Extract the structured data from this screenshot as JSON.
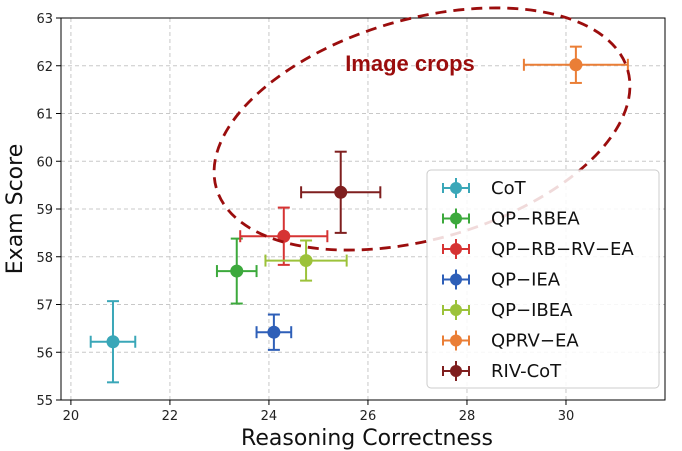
{
  "chart_data": {
    "type": "scatter",
    "title": "",
    "xlabel": "Reasoning Correctness",
    "ylabel": "Exam Score",
    "xlim": [
      19.8,
      32.0
    ],
    "ylim": [
      55,
      63
    ],
    "xticks": [
      "20",
      "22",
      "24",
      "26",
      "28",
      "30"
    ],
    "yticks": [
      "55",
      "56",
      "57",
      "58",
      "59",
      "60",
      "61",
      "62",
      "63"
    ],
    "grid": true,
    "legend_position": "bottom-right",
    "series": [
      {
        "name": "CoT",
        "x": 20.85,
        "y": 56.22,
        "xerr": 0.45,
        "yerr_low": 0.85,
        "yerr_high": 0.85,
        "color": "#3aa7b8"
      },
      {
        "name": "QP−RBEA",
        "x": 23.35,
        "y": 57.7,
        "xerr": 0.4,
        "yerr_low": 0.68,
        "yerr_high": 0.68,
        "color": "#3ca93c"
      },
      {
        "name": "QP−RB−RV−EA",
        "x": 24.3,
        "y": 58.43,
        "xerr": 0.88,
        "yerr_low": 0.6,
        "yerr_high": 0.6,
        "color": "#d63333"
      },
      {
        "name": "QP−IEA",
        "x": 24.1,
        "y": 56.42,
        "xerr": 0.35,
        "yerr_low": 0.37,
        "yerr_high": 0.37,
        "color": "#2e5fb8"
      },
      {
        "name": "QP−IBEA",
        "x": 24.75,
        "y": 57.92,
        "xerr": 0.82,
        "yerr_low": 0.42,
        "yerr_high": 0.42,
        "color": "#9cc23a"
      },
      {
        "name": "QPRV−EA",
        "x": 30.2,
        "y": 62.02,
        "xerr": 1.05,
        "yerr_low": 0.38,
        "yerr_high": 0.38,
        "color": "#ea7e36"
      },
      {
        "name": "RIV-CoT",
        "x": 25.45,
        "y": 59.35,
        "xerr": 0.8,
        "yerr_low": 0.85,
        "yerr_high": 0.85,
        "color": "#7f1f1f"
      }
    ],
    "annotations": [
      {
        "text": "Image crops",
        "color": "#9b0d0d",
        "shape": "dashed-ellipse"
      }
    ]
  }
}
